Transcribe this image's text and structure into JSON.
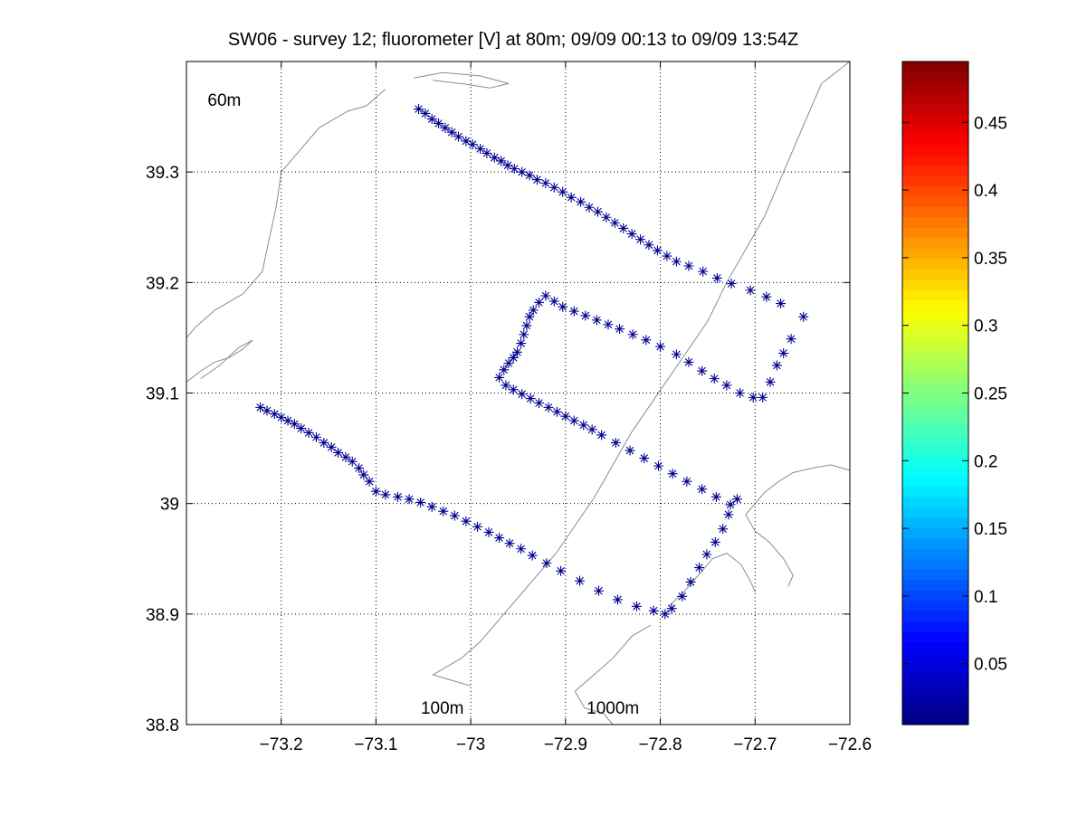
{
  "chart_data": {
    "type": "scatter",
    "title": "SW06 - survey 12; fluorometer [V] at 80m; 09/09 00:13 to 09/09 13:54Z",
    "xlabel": "",
    "ylabel": "",
    "xlim": [
      -73.3,
      -72.6
    ],
    "ylim": [
      38.8,
      39.4
    ],
    "grid": true,
    "xticks": [
      -73.2,
      -73.1,
      -73.0,
      -72.9,
      -72.8,
      -72.7,
      -72.6
    ],
    "yticks": [
      38.8,
      38.9,
      39.0,
      39.1,
      39.2,
      39.3
    ],
    "xtick_labels": [
      "−73.2",
      "−73.1",
      "−73",
      "−72.9",
      "−72.8",
      "−72.7",
      "−72.6"
    ],
    "ytick_labels": [
      "38.8",
      "38.9",
      "39",
      "39.1",
      "39.2",
      "39.3"
    ],
    "marker": "*",
    "marker_color": "#00008f",
    "contour_color": "#8c8c8c",
    "annotations": [
      {
        "text": "60m",
        "x": -73.26,
        "y": 39.36
      },
      {
        "text": "100m",
        "x": -73.03,
        "y": 38.81
      },
      {
        "text": "1000m",
        "x": -72.85,
        "y": 38.81
      }
    ],
    "colorbar": {
      "colormap": "jet",
      "range": [
        0.005,
        0.495
      ],
      "ticks": [
        0.05,
        0.1,
        0.15,
        0.2,
        0.25,
        0.3,
        0.35,
        0.4,
        0.45
      ],
      "tick_labels": [
        "0.05",
        "0.1",
        "0.15",
        "0.2",
        "0.25",
        "0.3",
        "0.35",
        "0.4",
        "0.45"
      ]
    },
    "tracks": [
      {
        "x": [
          -73.055,
          -73.048,
          -73.041,
          -73.034,
          -73.027,
          -73.02,
          -73.013,
          -73.005,
          -72.998,
          -72.99,
          -72.983,
          -72.975,
          -72.968,
          -72.961,
          -72.954,
          -72.946,
          -72.938,
          -72.93,
          -72.921,
          -72.912,
          -72.903,
          -72.894,
          -72.884,
          -72.875,
          -72.866,
          -72.857,
          -72.848,
          -72.839,
          -72.83,
          -72.821,
          -72.812,
          -72.803,
          -72.793,
          -72.783,
          -72.77,
          -72.755,
          -72.74,
          -72.725,
          -72.705,
          -72.688,
          -72.673
        ],
        "y": [
          39.357,
          39.353,
          39.348,
          39.344,
          39.34,
          39.336,
          39.332,
          39.328,
          39.325,
          39.321,
          39.317,
          39.313,
          39.31,
          39.306,
          39.303,
          39.3,
          39.297,
          39.293,
          39.29,
          39.286,
          39.282,
          39.277,
          39.273,
          39.268,
          39.264,
          39.259,
          39.254,
          39.249,
          39.244,
          39.239,
          39.234,
          39.229,
          39.224,
          39.219,
          39.215,
          39.21,
          39.204,
          39.199,
          39.193,
          39.187,
          39.181
        ]
      },
      {
        "x": [
          -72.649,
          -72.662,
          -72.67,
          -72.677,
          -72.684,
          -72.692,
          -72.702
        ],
        "y": [
          39.169,
          39.149,
          39.136,
          39.125,
          39.11,
          39.096,
          39.096
        ]
      },
      {
        "x": [
          -72.716,
          -72.73,
          -72.743,
          -72.756,
          -72.77,
          -72.783,
          -72.8,
          -72.815,
          -72.829,
          -72.843,
          -72.855,
          -72.867,
          -72.879,
          -72.891,
          -72.903,
          -72.912,
          -72.921
        ],
        "y": [
          39.1,
          39.107,
          39.113,
          39.12,
          39.128,
          39.135,
          39.142,
          39.148,
          39.153,
          39.158,
          39.162,
          39.166,
          39.17,
          39.174,
          39.178,
          39.183,
          39.188
        ]
      },
      {
        "x": [
          -72.928,
          -72.934,
          -72.938,
          -72.941,
          -72.944,
          -72.947,
          -72.951,
          -72.955,
          -72.96,
          -72.965,
          -72.97
        ],
        "y": [
          39.182,
          39.175,
          39.169,
          39.161,
          39.153,
          39.145,
          39.137,
          39.132,
          39.127,
          39.121,
          39.114
        ]
      },
      {
        "x": [
          -72.963,
          -72.955,
          -72.946,
          -72.937,
          -72.928,
          -72.918,
          -72.909,
          -72.9,
          -72.891,
          -72.881,
          -72.872,
          -72.862,
          -72.847,
          -72.832,
          -72.817,
          -72.802,
          -72.787,
          -72.772,
          -72.756,
          -72.741,
          -72.726
        ],
        "y": [
          39.107,
          39.103,
          39.099,
          39.095,
          39.091,
          39.087,
          39.083,
          39.079,
          39.075,
          39.071,
          39.067,
          39.062,
          39.055,
          39.048,
          39.041,
          39.034,
          39.027,
          39.02,
          39.013,
          39.006,
          38.999
        ]
      },
      {
        "x": [
          -72.719,
          -72.728,
          -72.734,
          -72.742,
          -72.751,
          -72.759,
          -72.768,
          -72.777,
          -72.788,
          -72.795
        ],
        "y": [
          39.004,
          38.99,
          38.977,
          38.965,
          38.954,
          38.942,
          38.929,
          38.916,
          38.905,
          38.9
        ]
      },
      {
        "x": [
          -72.807,
          -72.825,
          -72.845,
          -72.865,
          -72.885,
          -72.905,
          -72.92,
          -72.935,
          -72.947,
          -72.959,
          -72.97,
          -72.981,
          -72.993,
          -73.005,
          -73.017,
          -73.029,
          -73.041,
          -73.053,
          -73.065,
          -73.077,
          -73.09,
          -73.1,
          -73.107,
          -73.113,
          -73.118,
          -73.125,
          -73.132,
          -73.14,
          -73.147,
          -73.155,
          -73.163,
          -73.171,
          -73.179,
          -73.186,
          -73.193,
          -73.2,
          -73.207,
          -73.215,
          -73.222
        ],
        "y": [
          38.903,
          38.907,
          38.913,
          38.921,
          38.93,
          38.939,
          38.946,
          38.953,
          38.959,
          38.964,
          38.969,
          38.974,
          38.979,
          38.984,
          38.989,
          38.993,
          38.997,
          39.001,
          39.004,
          39.006,
          39.008,
          39.011,
          39.02,
          39.026,
          39.032,
          39.038,
          39.042,
          39.046,
          39.051,
          39.055,
          39.06,
          39.064,
          39.068,
          39.072,
          39.075,
          39.078,
          39.081,
          39.084,
          39.087
        ]
      }
    ],
    "contours": [
      {
        "name": "shelf-break-contour",
        "x": [
          -72.6,
          -72.63,
          -72.65,
          -72.67,
          -72.69,
          -72.71,
          -72.73,
          -72.75,
          -72.77,
          -72.79,
          -72.81,
          -72.83,
          -72.85,
          -72.87,
          -72.89,
          -72.91,
          -72.93,
          -72.95,
          -72.97,
          -72.99,
          -73.01,
          -73.02,
          -73.03,
          -73.04,
          -73.02,
          -73.0
        ],
        "y": [
          39.4,
          39.38,
          39.34,
          39.3,
          39.26,
          39.23,
          39.2,
          39.165,
          39.14,
          39.115,
          39.09,
          39.065,
          39.035,
          39.005,
          38.98,
          38.955,
          38.935,
          38.915,
          38.895,
          38.875,
          38.86,
          38.855,
          38.85,
          38.845,
          38.84,
          38.835
        ]
      },
      {
        "name": "shelf-contour-1",
        "x": [
          -73.3,
          -73.29,
          -73.27,
          -73.25,
          -73.24,
          -73.23,
          -73.22,
          -73.215,
          -73.21,
          -73.205,
          -73.2,
          -73.19,
          -73.18,
          -73.17,
          -73.16,
          -73.15,
          -73.14,
          -73.13,
          -73.11,
          -73.09
        ],
        "y": [
          39.15,
          39.16,
          39.175,
          39.185,
          39.19,
          39.2,
          39.21,
          39.23,
          39.25,
          39.27,
          39.3,
          39.31,
          39.32,
          39.33,
          39.34,
          39.345,
          39.35,
          39.355,
          39.36,
          39.375
        ]
      },
      {
        "name": "shelf-contour-2",
        "x": [
          -73.3,
          -73.285,
          -73.27,
          -73.255,
          -73.24,
          -73.23,
          -73.245,
          -73.265,
          -73.285
        ],
        "y": [
          39.11,
          39.12,
          39.128,
          39.132,
          39.14,
          39.148,
          39.141,
          39.125,
          39.113
        ]
      },
      {
        "name": "shelf-contour-3",
        "x": [
          -73.06,
          -73.03,
          -72.99,
          -72.96,
          -72.98,
          -73.01,
          -73.04
        ],
        "y": [
          39.385,
          39.39,
          39.387,
          39.38,
          39.376,
          39.38,
          39.383
        ]
      },
      {
        "name": "slope-contour-1",
        "x": [
          -72.6,
          -72.62,
          -72.64,
          -72.66,
          -72.675,
          -72.69,
          -72.7,
          -72.71,
          -72.7,
          -72.685,
          -72.67,
          -72.66,
          -72.665
        ],
        "y": [
          39.03,
          39.035,
          39.032,
          39.028,
          39.02,
          39.01,
          39.0,
          38.99,
          38.975,
          38.965,
          38.95,
          38.935,
          38.925
        ]
      },
      {
        "name": "slope-contour-2",
        "x": [
          -72.79,
          -72.775,
          -72.76,
          -72.745,
          -72.73,
          -72.715,
          -72.705,
          -72.7
        ],
        "y": [
          38.908,
          38.92,
          38.935,
          38.95,
          38.955,
          38.945,
          38.93,
          38.92
        ]
      },
      {
        "name": "slope-contour-3",
        "x": [
          -72.81,
          -72.83,
          -72.85,
          -72.87,
          -72.89,
          -72.88,
          -72.86,
          -72.85
        ],
        "y": [
          38.89,
          38.88,
          38.86,
          38.845,
          38.83,
          38.815,
          38.81,
          38.8
        ]
      }
    ]
  }
}
